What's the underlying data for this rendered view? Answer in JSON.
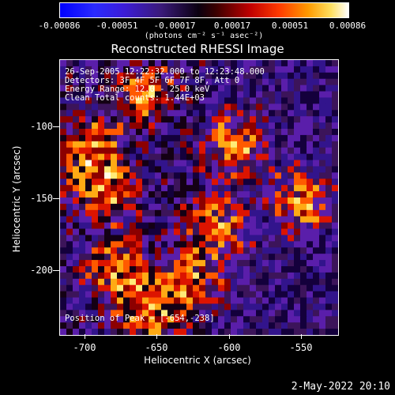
{
  "colorbar": {
    "ticks": [
      "-0.00086",
      "-0.00051",
      "-0.00017",
      "0.00017",
      "0.00051",
      "0.00086"
    ],
    "unit": "(photons cm⁻² s⁻¹ asec⁻²)"
  },
  "title": "Reconstructed RHESSI Image",
  "info": {
    "time": "26-Sep-2005 12:22:32.000 to 12:23:48.000",
    "detectors": "Detectors: 3F 4F 5F 6F 7F 8F, Att 0",
    "energy": "Energy Range: 12.0 - 25.0 keV",
    "clean": "Clean      Total counts: 1.44E+03",
    "peak": "Position of Peak = [-654,-238]"
  },
  "yaxis": {
    "label": "Heliocentric Y (arcsec)",
    "ticks": [
      "-100",
      "-150",
      "-200"
    ]
  },
  "xaxis": {
    "label": "Heliocentric X (arcsec)",
    "ticks": [
      "-700",
      "-650",
      "-600",
      "-550"
    ]
  },
  "date": "2-May-2022 20:10"
}
